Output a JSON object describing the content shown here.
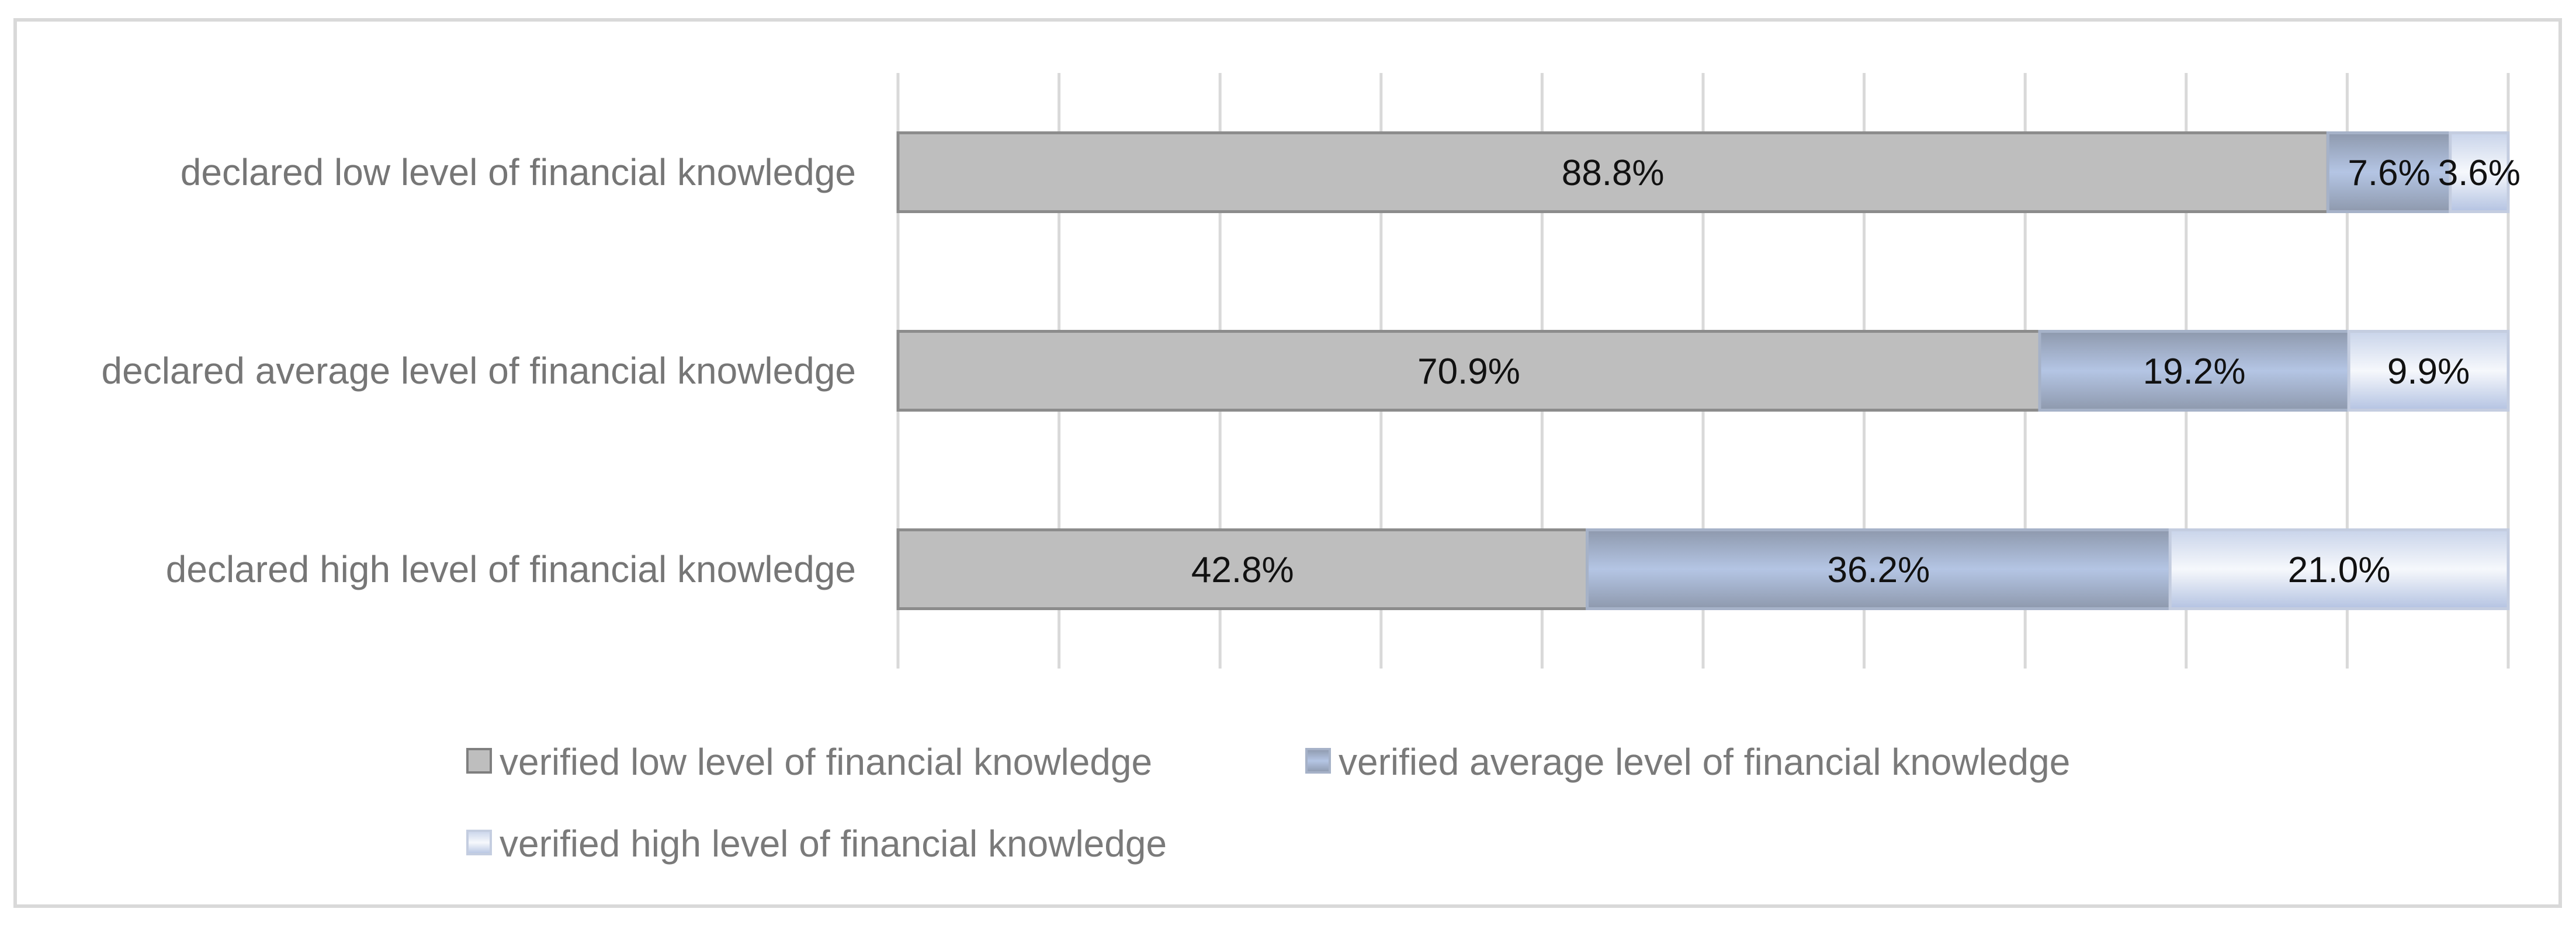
{
  "chart_data": {
    "type": "bar",
    "orientation": "horizontal",
    "stacked": "percent",
    "categories": [
      "declared low level of financial knowledge",
      "declared average level of financial knowledge",
      "declared high level of financial knowledge"
    ],
    "series": [
      {
        "name": "verified low level of financial knowledge",
        "values": [
          88.8,
          70.9,
          42.8
        ],
        "labels": [
          "88.8%",
          "70.9%",
          "42.8%"
        ],
        "color": "#bfbfbf"
      },
      {
        "name": "verified average level of financial knowledge",
        "values": [
          7.6,
          19.2,
          36.2
        ],
        "labels": [
          "7.6%",
          "19.2%",
          "36.2%"
        ],
        "color": "#aebfdc"
      },
      {
        "name": "verified high level of financial knowledge",
        "values": [
          3.6,
          9.9,
          21.0
        ],
        "labels": [
          "3.6%",
          "9.9%",
          "21.0%"
        ],
        "color": "#dbe3f2"
      }
    ],
    "xlim": [
      0,
      100
    ],
    "grid": true,
    "legend": "bottom",
    "title": "",
    "xlabel": "",
    "ylabel": ""
  }
}
